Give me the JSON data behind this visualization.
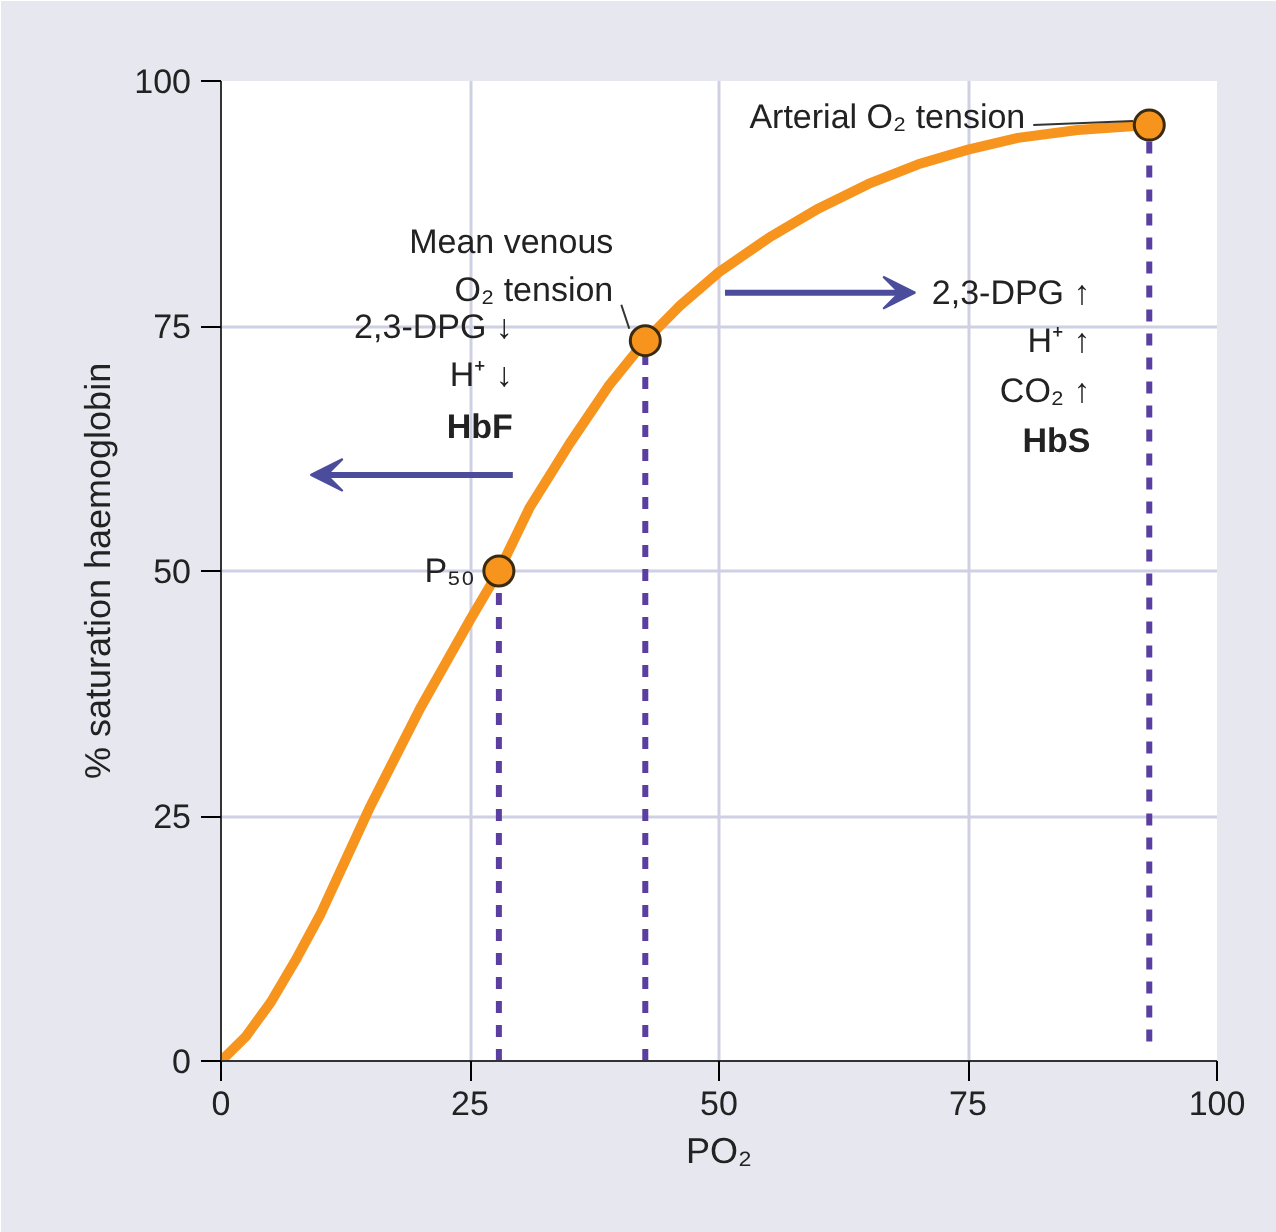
{
  "chart_data": {
    "type": "line",
    "xlabel": "PO₂",
    "ylabel": "% saturation haemoglobin",
    "xlim": [
      0,
      100
    ],
    "ylim": [
      0,
      100
    ],
    "xticks": [
      0,
      25,
      50,
      75,
      100
    ],
    "yticks": [
      0,
      25,
      50,
      75,
      100
    ],
    "grid": true,
    "series": [
      {
        "color": "#f7941d",
        "x": [
          0,
          2.5,
          5,
          7.5,
          10,
          12.5,
          15,
          17.5,
          20,
          22.5,
          25,
          27.9,
          31,
          35,
          39,
          42.6,
          46,
          50,
          55,
          60,
          65,
          70,
          75,
          80,
          86,
          93.2
        ],
        "values": [
          0,
          2.5,
          6,
          10.3,
          15,
          20.5,
          26,
          31,
          36,
          40.5,
          45,
          50,
          56.5,
          63,
          69,
          73.5,
          77,
          80.5,
          84,
          87,
          89.5,
          91.5,
          93,
          94.2,
          95,
          95.5
        ]
      },
      {
        "type": "line",
        "color": "#5b3fa0",
        "line_style": "dashed",
        "x": [
          27.9,
          27.9
        ],
        "values": [
          0,
          50
        ]
      },
      {
        "type": "line",
        "color": "#5b3fa0",
        "line_style": "dashed",
        "x": [
          42.6,
          42.6
        ],
        "values": [
          0,
          73.5
        ]
      },
      {
        "type": "line",
        "color": "#5b3fa0",
        "line_style": "dashed",
        "x": [
          93.2,
          93.2
        ],
        "values": [
          2,
          95.5
        ]
      },
      {
        "type": "scatter",
        "color": "#f7941d",
        "marker": "circle",
        "x": [
          27.9,
          42.6,
          93.2
        ],
        "values": [
          50,
          73.5,
          95.5
        ]
      }
    ],
    "annotations": [
      {
        "text": "P₅₀",
        "x": 27.9,
        "y": 50
      },
      {
        "text": "Mean venous\nO₂ tension",
        "x": 42.6,
        "y": 73.5
      },
      {
        "text": "Arterial O₂ tension",
        "x": 93.2,
        "y": 95.5
      },
      "2,3-DPG ↓",
      "H⁺ ↓",
      "HbF",
      "2,3-DPG ↑",
      "H⁺ ↑",
      "CO₂ ↑",
      "HbS"
    ]
  }
}
